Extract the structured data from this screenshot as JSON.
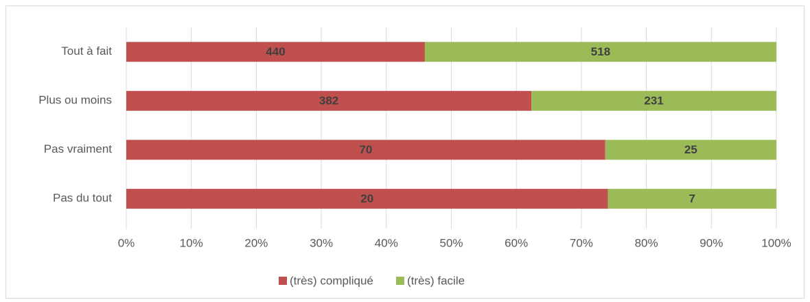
{
  "chart_data": {
    "type": "bar",
    "orientation": "horizontal",
    "stacking": "percent",
    "categories": [
      "Tout à fait",
      "Plus ou moins",
      "Pas vraiment",
      "Pas du tout"
    ],
    "series": [
      {
        "name": "(très) compliqué",
        "color": "#c0504d",
        "values": [
          440,
          382,
          70,
          20
        ]
      },
      {
        "name": "(très) facile",
        "color": "#9bbb59",
        "values": [
          518,
          231,
          25,
          7
        ]
      }
    ],
    "xlim": [
      0,
      100
    ],
    "xticks": [
      {
        "value": 0,
        "label": "0%"
      },
      {
        "value": 10,
        "label": "10%"
      },
      {
        "value": 20,
        "label": "20%"
      },
      {
        "value": 30,
        "label": "30%"
      },
      {
        "value": 40,
        "label": "40%"
      },
      {
        "value": 50,
        "label": "50%"
      },
      {
        "value": 60,
        "label": "60%"
      },
      {
        "value": 70,
        "label": "70%"
      },
      {
        "value": 80,
        "label": "80%"
      },
      {
        "value": 90,
        "label": "90%"
      },
      {
        "value": 100,
        "label": "100%"
      }
    ],
    "grid": true,
    "legend": "bottom"
  }
}
